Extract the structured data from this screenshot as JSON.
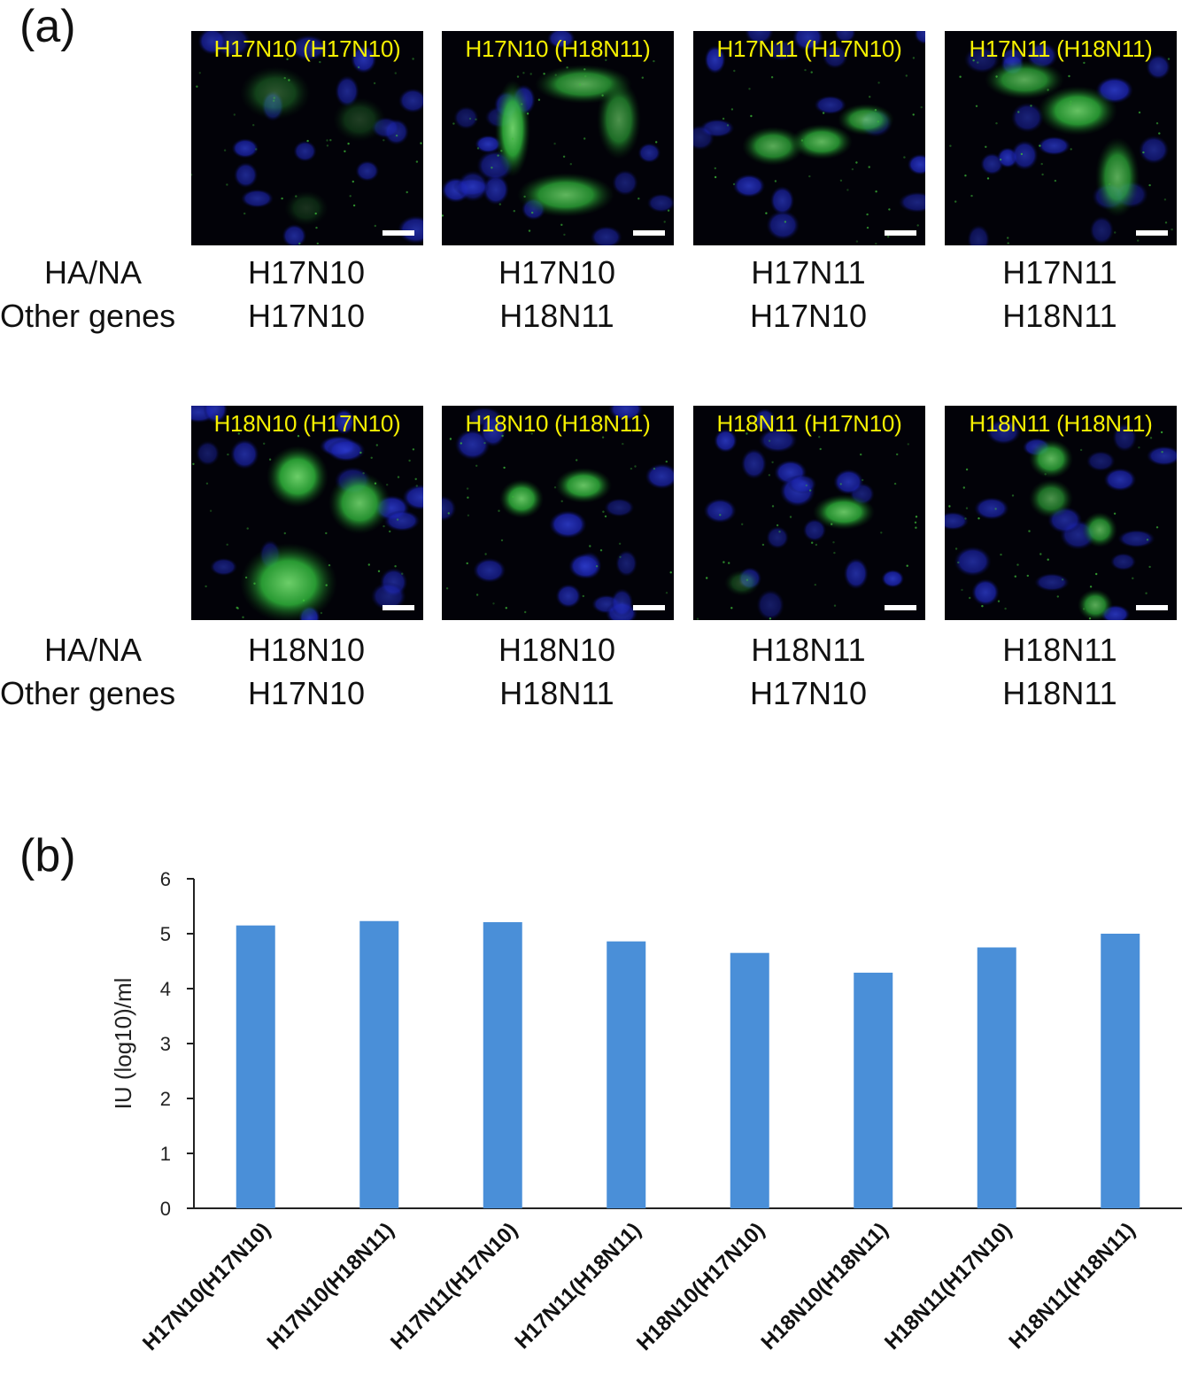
{
  "panel_a": {
    "letter": "(a)",
    "row_labels": {
      "ha_na": "HA/NA",
      "other": "Other genes"
    },
    "rows": [
      {
        "images": [
          {
            "title": "H17N10 (H17N10)",
            "ha_na": "H17N10",
            "other": "H17N10",
            "stain": "weak"
          },
          {
            "title": "H17N10 (H18N11)",
            "ha_na": "H17N10",
            "other": "H18N11",
            "stain": "ring"
          },
          {
            "title": "H17N11 (H17N10)",
            "ha_na": "H17N11",
            "other": "H17N10",
            "stain": "chain"
          },
          {
            "title": "H17N11 (H18N11)",
            "ha_na": "H17N11",
            "other": "H18N11",
            "stain": "diagonal"
          }
        ]
      },
      {
        "images": [
          {
            "title": "H18N10 (H17N10)",
            "ha_na": "H18N10",
            "other": "H17N10",
            "stain": "bright"
          },
          {
            "title": "H18N10 (H18N11)",
            "ha_na": "H18N10",
            "other": "H18N11",
            "stain": "pair"
          },
          {
            "title": "H18N11 (H17N10)",
            "ha_na": "H18N11",
            "other": "H17N10",
            "stain": "single"
          },
          {
            "title": "H18N11 (H18N11)",
            "ha_na": "H18N11",
            "other": "H18N11",
            "stain": "scattered"
          }
        ]
      }
    ]
  },
  "panel_b": {
    "letter": "(b)"
  },
  "chart_data": {
    "type": "bar",
    "categories": [
      "H17N10(H17N10)",
      "H17N10(H18N11)",
      "H17N11(H17N10)",
      "H17N11(H18N11)",
      "H18N10(H17N10)",
      "H18N10(H18N11)",
      "H18N11(H17N10)",
      "H18N11(H18N11)"
    ],
    "values": [
      5.15,
      5.23,
      5.21,
      4.86,
      4.65,
      4.29,
      4.75,
      5.0
    ],
    "title": "",
    "xlabel": "",
    "ylabel": "IU (log10)/ml",
    "ylim": [
      0,
      6
    ],
    "yticks": [
      0,
      1,
      2,
      3,
      4,
      5,
      6
    ],
    "grid": false,
    "bar_color": "#4a8fd8"
  }
}
